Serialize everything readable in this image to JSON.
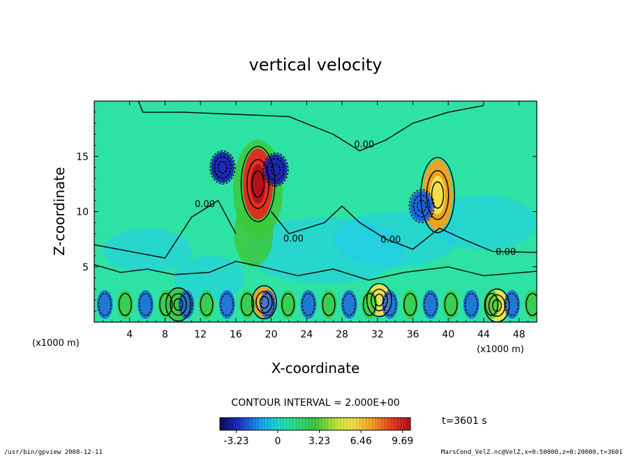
{
  "chart_data": {
    "type": "heatmap",
    "title": "vertical velocity",
    "xlabel": "X-coordinate",
    "ylabel": "Z-coordinate",
    "x_unit": "(x1000 m)",
    "z_unit": "(x1000 m)",
    "xlim": [
      0,
      50
    ],
    "ylim": [
      0,
      20
    ],
    "xticks": [
      4,
      8,
      12,
      16,
      20,
      24,
      28,
      32,
      36,
      40,
      44,
      48
    ],
    "yticks": [
      5,
      10,
      15
    ],
    "contour_labels": [
      {
        "text": "0.00",
        "x": 30.5,
        "z": 15.8
      },
      {
        "text": "0.00",
        "x": 12.5,
        "z": 10.4
      },
      {
        "text": "0.00",
        "x": 22.5,
        "z": 7.3
      },
      {
        "text": "0.00",
        "x": 33.5,
        "z": 7.2
      },
      {
        "text": "0.00",
        "x": 46.5,
        "z": 6.1
      }
    ],
    "contour_interval": "CONTOUR INTERVAL = 2.000E+00",
    "colorbar": {
      "min": -4.5,
      "max": 10.3,
      "ticks": [
        "-3.23",
        "0",
        "3.23",
        "6.46",
        "9.69"
      ],
      "tick_values": [
        -3.23,
        0,
        3.23,
        6.46,
        9.69
      ]
    },
    "time_label": "t=3601 s",
    "footer_left": "/usr/bin/gpview  2008-12-11",
    "footer_right": "MarsCond_VelZ.nc@VelZ,x=0:50000,z=0:20000,t=3601",
    "features": [
      {
        "kind": "updraft",
        "x": 18.5,
        "z": 12.5,
        "w": 9.5
      },
      {
        "kind": "updraft",
        "x": 38.8,
        "z": 11.5,
        "w": 7.0
      },
      {
        "kind": "downdraft",
        "x": 14.5,
        "z": 14.0,
        "w": -4.0
      },
      {
        "kind": "downdraft",
        "x": 20.5,
        "z": 13.8,
        "w": -3.5
      },
      {
        "kind": "downdraft",
        "x": 37.0,
        "z": 10.5,
        "w": -3.0
      },
      {
        "kind": "updraft",
        "x": 19.2,
        "z": 1.8,
        "w": 6.0
      },
      {
        "kind": "updraft",
        "x": 32.2,
        "z": 2.0,
        "w": 5.5
      },
      {
        "kind": "updraft",
        "x": 45.5,
        "z": 1.5,
        "w": 5.0
      },
      {
        "kind": "updraft",
        "x": 9.5,
        "z": 1.6,
        "w": 4.0
      }
    ]
  }
}
